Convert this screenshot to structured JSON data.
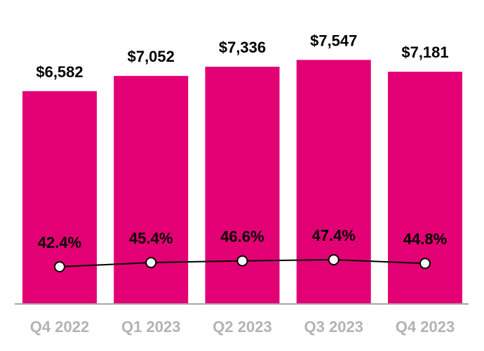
{
  "chart_data": {
    "type": "bar",
    "categories": [
      "Q4 2022",
      "Q1 2023",
      "Q2 2023",
      "Q3 2023",
      "Q4 2023"
    ],
    "series": [
      {
        "type": "bar",
        "values": [
          6582,
          7052,
          7336,
          7547,
          7181
        ],
        "labels": [
          "$6,582",
          "$7,052",
          "$7,336",
          "$7,547",
          "$7,181"
        ],
        "color": "#E20074"
      },
      {
        "type": "line",
        "values": [
          42.4,
          45.4,
          46.6,
          47.4,
          44.8
        ],
        "labels": [
          "42.4%",
          "45.4%",
          "46.6%",
          "47.4%",
          "44.8%"
        ],
        "color": "#000000",
        "marker_fill": "#ffffff"
      }
    ],
    "title": "",
    "xlabel": "",
    "ylabel": "",
    "ylim": [
      0,
      9400
    ],
    "grid": false,
    "legend": "none",
    "axis_color": "#a6a6a6",
    "tick_label_color": "#b3b3b3"
  }
}
